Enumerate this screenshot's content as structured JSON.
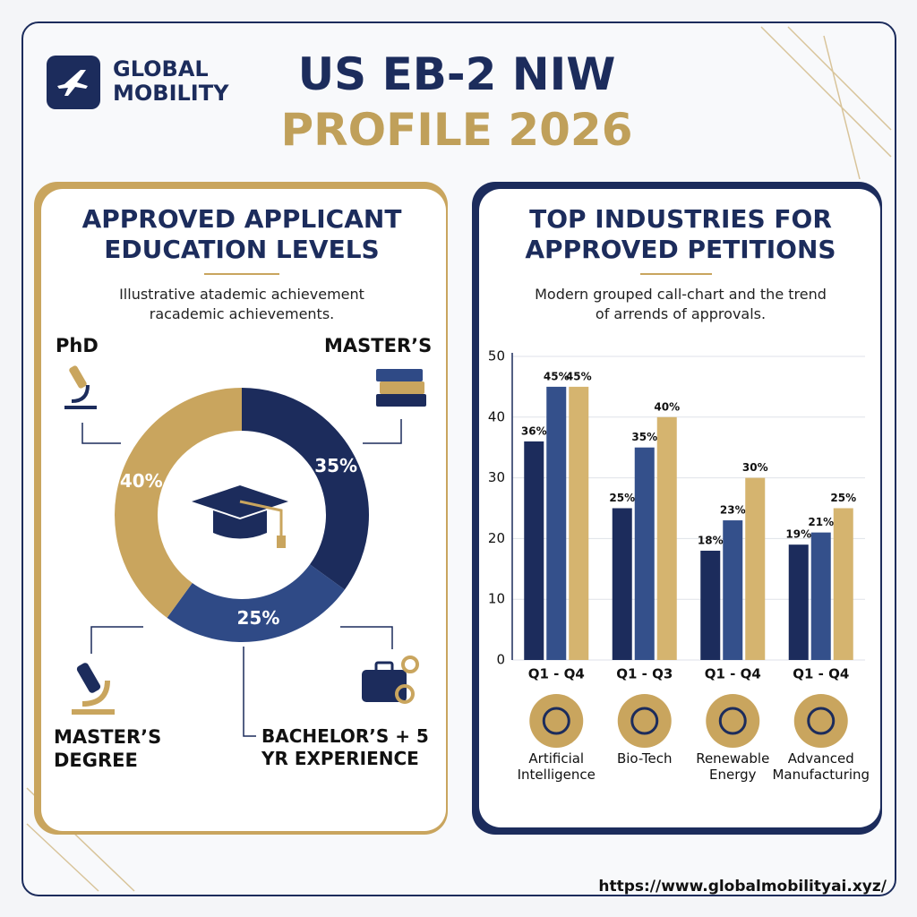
{
  "header": {
    "logo": [
      "GLOBAL",
      "MOBILITY"
    ],
    "title": [
      "US EB-2 NIW",
      "PROFILE 2026"
    ]
  },
  "chart_data": [
    {
      "type": "donut",
      "title": "APPROVED APPLICANT EDUCATION LEVELS",
      "subtitle": "Illustrative atademic achievement racademic achievements.",
      "categories": [
        "MASTER’S",
        "BACHELOR’S + 5 YR EXPERIENCE",
        "PhD"
      ],
      "values": [
        35,
        25,
        40
      ],
      "value_labels": [
        "35%",
        "25%",
        "40%"
      ],
      "colors": [
        "#1c2c5c",
        "#2f4a86",
        "#c9a55e"
      ],
      "annotations": [
        "MASTER’S DEGREE"
      ]
    },
    {
      "type": "bar",
      "title": "TOP INDUSTRIES FOR APPROVED PETITIONS",
      "subtitle": "Modern grouped call-chart and the trend of arrends of approvals.",
      "categories": [
        "Q1 - Q4",
        "Q1 - Q3",
        "Q1 - Q4",
        "Q1 - Q4"
      ],
      "industries": [
        "Artificial Intelligence",
        "Bio-Tech",
        "Renewable Energy",
        "Advanced Manufacturing"
      ],
      "series": [
        {
          "color": "#1c2c5c",
          "values": [
            36,
            25,
            18,
            19
          ],
          "value_labels": [
            "36%",
            "25%",
            "18%",
            "19%"
          ]
        },
        {
          "color": "#34508b",
          "values": [
            45,
            35,
            23,
            21
          ],
          "value_labels": [
            "45%",
            "35%",
            "23%",
            "21%"
          ]
        },
        {
          "color": "#d5b46f",
          "values": [
            45,
            40,
            30,
            25
          ],
          "value_labels": [
            "45%",
            "40%",
            "30%",
            "25%"
          ]
        }
      ],
      "ylim": [
        0,
        50
      ],
      "yticks": [
        0,
        10,
        20,
        30,
        40,
        50
      ],
      "grid": true
    }
  ],
  "footer": {
    "url": "https://www.globalmobilityai.xyz/"
  }
}
